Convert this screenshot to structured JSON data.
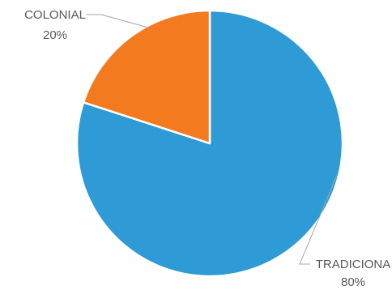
{
  "chart_data": {
    "type": "pie",
    "title": "",
    "slices": [
      {
        "label": "TRADICIONA",
        "value": 80,
        "value_label": "80%",
        "color": "#2e9bd6"
      },
      {
        "label": "COLONIAL",
        "value": 20,
        "value_label": "20%",
        "color": "#f47a20"
      }
    ],
    "start_angle_deg": 0,
    "direction": "clockwise",
    "legend": "none",
    "slice_border_color": "#ffffff"
  }
}
